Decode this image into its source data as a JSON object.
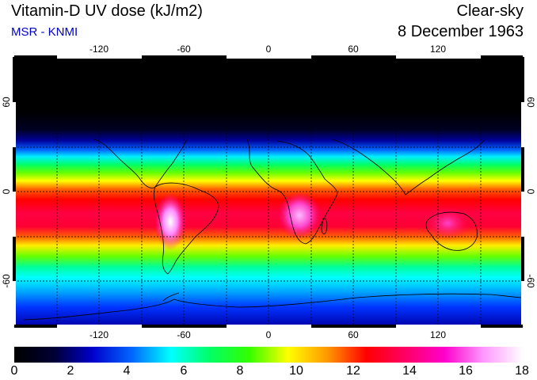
{
  "header": {
    "title": "Vitamin-D UV dose (kJ/m2)",
    "subtitle": "MSR - KNMI",
    "condition": "Clear-sky",
    "date": "8 December 1963"
  },
  "map": {
    "lon_ticks": [
      "-120",
      "-60",
      "0",
      "60",
      "120"
    ],
    "lat_ticks_left": [
      "60",
      "0",
      "-60"
    ],
    "lat_ticks_right": [
      "60",
      "0",
      "-60"
    ]
  },
  "colorbar": {
    "labels": [
      "0",
      "2",
      "4",
      "6",
      "8",
      "10",
      "12",
      "14",
      "16",
      "18"
    ],
    "colors": [
      "#000000",
      "#000033",
      "#0000cc",
      "#0066ff",
      "#00ffff",
      "#00ff66",
      "#33ff00",
      "#ffff00",
      "#ff9900",
      "#ff0000",
      "#ff0066",
      "#ff00cc",
      "#ff99ff",
      "#ffffff"
    ]
  }
}
